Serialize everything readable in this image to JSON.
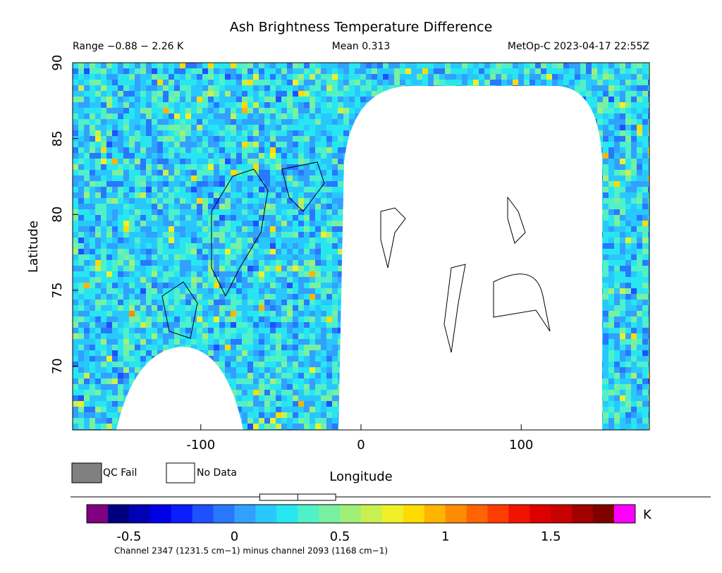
{
  "chart_data": {
    "type": "map",
    "title": "Ash Brightness Temperature Difference",
    "range_text": "Range −0.88 − 2.26 K",
    "mean_text": "Mean 0.313",
    "source_text": "MetOp-C 2023-04-17 22:55Z",
    "xlabel": "Longitude",
    "ylabel": "Latitude",
    "xlim": [
      -180,
      180
    ],
    "xticks": [
      -100,
      0,
      100
    ],
    "ylim": [
      65.8,
      90
    ],
    "yticks": [
      70,
      75,
      80,
      85,
      90
    ],
    "legend": [
      {
        "name": "QC Fail",
        "color": "#808080"
      },
      {
        "name": "No Data",
        "color": "#ffffff"
      }
    ],
    "colorbar": {
      "unit": "K",
      "clim": [
        -0.6,
        1.8
      ],
      "ticks": [
        -0.5,
        0,
        0.5,
        1,
        1.5
      ],
      "under_color": "#800080",
      "over_color": "#ff00ff",
      "colors": [
        "#00007f",
        "#0000b4",
        "#0000e6",
        "#0a1eff",
        "#1e50ff",
        "#2878ff",
        "#32a0ff",
        "#28c8ff",
        "#28e6f0",
        "#50f0c8",
        "#78f0a0",
        "#a0f078",
        "#c8f050",
        "#f0f028",
        "#ffdc00",
        "#ffb400",
        "#ff8c00",
        "#ff6400",
        "#ff3c00",
        "#f01400",
        "#dc0000",
        "#c80000",
        "#a00000",
        "#800000"
      ],
      "box": {
        "q1": 0.12,
        "median": 0.3,
        "q3": 0.48
      },
      "caption": "Channel 2347 (1231.5 cm−1) minus channel 2093 (1168 cm−1)"
    }
  }
}
